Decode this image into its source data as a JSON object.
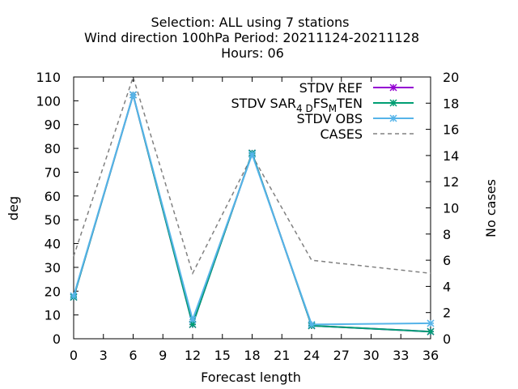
{
  "chart_data": {
    "type": "line",
    "title_lines": [
      "Selection: ALL using     7 stations",
      "Wind direction 100hPa   Period: 20211124-20211128",
      "Hours:  06"
    ],
    "xlabel": "Forecast length",
    "ylabel": "deg",
    "y2label": "No cases",
    "xlim": [
      0,
      36
    ],
    "ylim": [
      0,
      110
    ],
    "y2lim": [
      0,
      20
    ],
    "xticks": [
      0,
      3,
      6,
      9,
      12,
      15,
      18,
      21,
      24,
      27,
      30,
      33,
      36
    ],
    "yticks": [
      0,
      10,
      20,
      30,
      40,
      50,
      60,
      70,
      80,
      90,
      100,
      110
    ],
    "y2ticks": [
      0,
      2,
      4,
      6,
      8,
      10,
      12,
      14,
      16,
      18,
      20
    ],
    "legend_position": "top-right",
    "series": [
      {
        "name": "STDV REF",
        "legend_main": "STDV REF",
        "axis": "y",
        "color": "#9400d3",
        "style": "solid",
        "marker": "x",
        "x": [
          0,
          6,
          12,
          18,
          24,
          36
        ],
        "y": [
          17.5,
          102.5,
          6.0,
          78.0,
          5.5,
          3.0
        ]
      },
      {
        "name": "STDV SAR_4D_FS_M_TEN",
        "legend_main": "STDV SAR",
        "legend_sub1": "4 D",
        "legend_mid": "FS",
        "legend_sub2": "M",
        "legend_end": "TEN",
        "axis": "y",
        "color": "#009e73",
        "style": "solid",
        "marker": "x",
        "x": [
          0,
          6,
          12,
          18,
          24,
          36
        ],
        "y": [
          17.5,
          102.5,
          6.0,
          78.0,
          5.5,
          3.0
        ]
      },
      {
        "name": "STDV OBS",
        "legend_main": "STDV OBS",
        "axis": "y",
        "color": "#56b4e9",
        "style": "solid",
        "marker": "x",
        "x": [
          0,
          6,
          12,
          18,
          24,
          36
        ],
        "y": [
          18.0,
          102.5,
          8.0,
          77.5,
          6.0,
          6.5
        ]
      },
      {
        "name": "CASES",
        "legend_main": "CASES",
        "axis": "y2",
        "color": "#808080",
        "style": "dashed",
        "marker": "none",
        "x": [
          0,
          6,
          12,
          18,
          24,
          36
        ],
        "y": [
          6.3,
          20.0,
          5.0,
          14.0,
          6.0,
          5.0
        ]
      }
    ]
  }
}
